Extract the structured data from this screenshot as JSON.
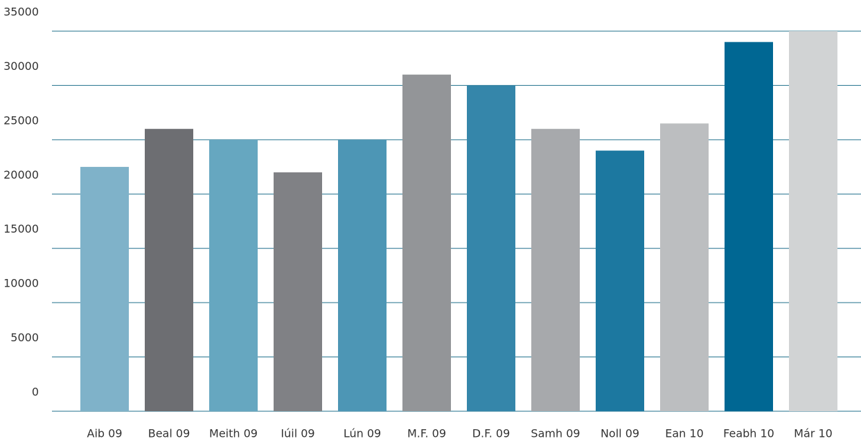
{
  "chart_data": {
    "type": "bar",
    "categories": [
      "Aib 09",
      "Beal 09",
      "Meith 09",
      "Iúil 09",
      "Lún 09",
      "M.F. 09",
      "D.F. 09",
      "Samh 09",
      "Noll 09",
      "Ean 10",
      "Feabh 10",
      "Már 10"
    ],
    "values": [
      22500,
      26000,
      25000,
      22000,
      25000,
      31000,
      30000,
      26000,
      24000,
      26500,
      34000,
      35000
    ],
    "colors": [
      "#7fb2c9",
      "#6d6e72",
      "#66a7c0",
      "#808185",
      "#4d96b5",
      "#939598",
      "#3586aa",
      "#a7a9ac",
      "#1c78a0",
      "#bcbec0",
      "#006793",
      "#d1d3d4"
    ],
    "ylim": [
      0,
      35000
    ],
    "yticks": [
      0,
      5000,
      10000,
      15000,
      20000,
      25000,
      30000,
      35000
    ],
    "grid": true
  }
}
